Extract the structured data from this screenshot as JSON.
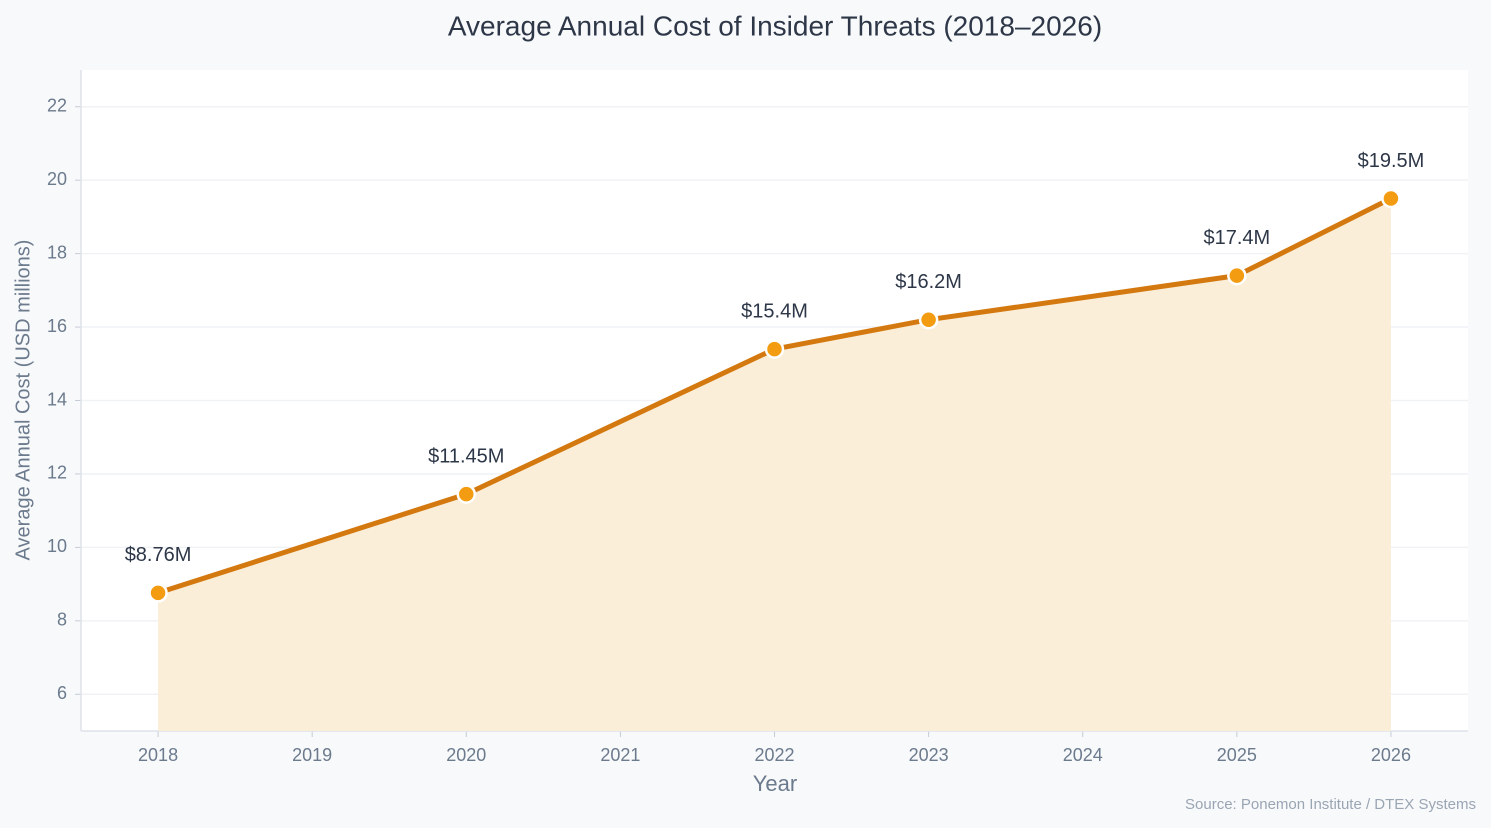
{
  "chart_data": {
    "type": "area-line",
    "title": "Average Annual Cost of Insider Threats (2018–2026)",
    "x_label": "Year",
    "y_label": "Average Annual Cost (USD millions)",
    "source": "Source: Ponemon Institute / DTEX Systems",
    "x": [
      2018,
      2020,
      2022,
      2023,
      2025,
      2026
    ],
    "values": [
      8.76,
      11.45,
      15.4,
      16.2,
      17.4,
      19.5
    ],
    "value_labels": [
      "$8.76M",
      "$11.45M",
      "$15.4M",
      "$16.2M",
      "$17.4M",
      "$19.5M"
    ],
    "color": "#d4790f",
    "marker_color": "#f39c12",
    "area_color": "#fbeed8",
    "xlim": [
      2017.5,
      2026.5
    ],
    "xticks": [
      2018,
      2019,
      2020,
      2021,
      2022,
      2023,
      2024,
      2025,
      2026
    ],
    "ylim": [
      5,
      23
    ],
    "yticks": [
      6,
      8,
      10,
      12,
      14,
      16,
      18,
      20,
      22
    ],
    "grid": true
  }
}
